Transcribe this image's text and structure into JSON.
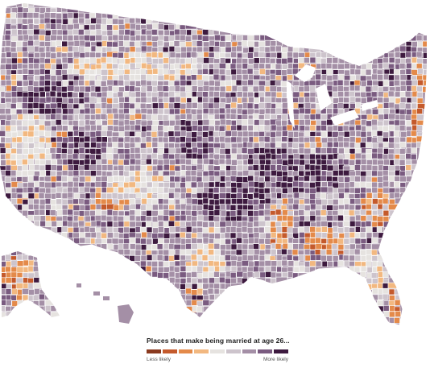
{
  "legend": {
    "title": "Places that make being married at age 26...",
    "low_label": "Less likely",
    "high_label": "More likely",
    "scale_colors": [
      "#8a3a1f",
      "#c45a2c",
      "#e48a4a",
      "#f2b880",
      "#e6e3e0",
      "#cdc4cc",
      "#a48fa6",
      "#7a5b80",
      "#3d1a3f"
    ]
  },
  "map": {
    "region": "contiguous United States, Alaska, Hawaii",
    "unit": "county",
    "color_meaning": "effect of place on likelihood of being married at age 26",
    "background_color": "#ffffff",
    "border_color": "#ffffff"
  }
}
